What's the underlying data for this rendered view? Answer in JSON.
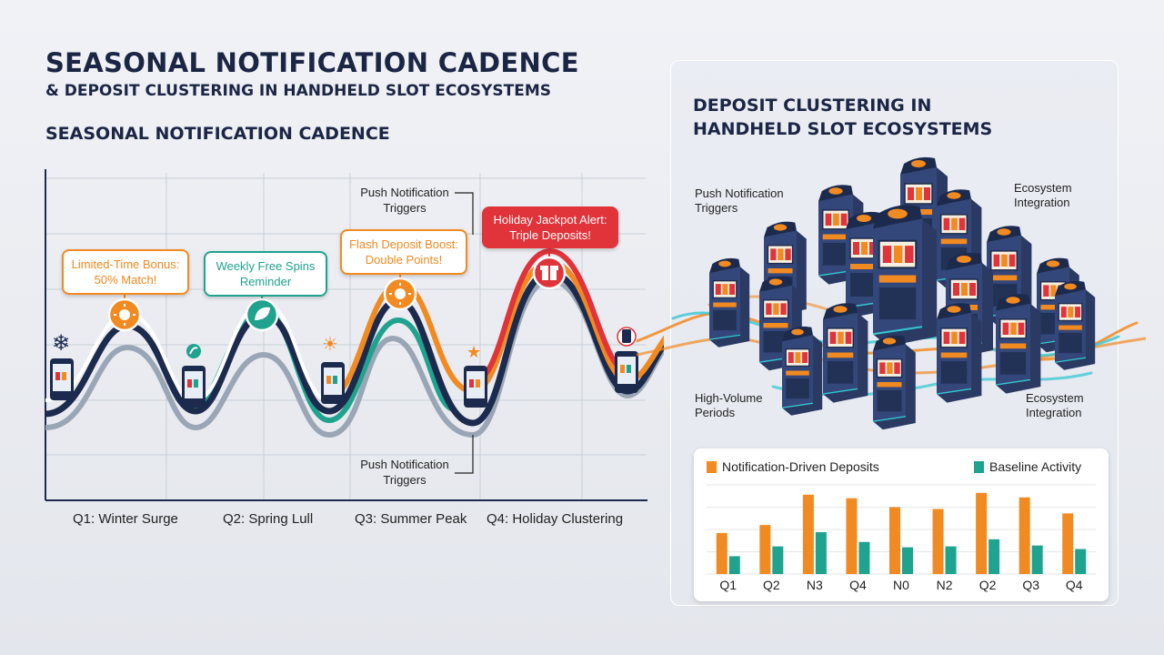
{
  "header": {
    "main_title": "SEASONAL NOTIFICATION CADENCE",
    "subtitle": "& DEPOSIT CLUSTERING IN HANDHELD SLOT ECOSYSTEMS",
    "section_title": "SEASONAL NOTIFICATION CADENCE"
  },
  "timeline": {
    "quarters": [
      "Q1: Winter Surge",
      "Q2: Spring Lull",
      "Q3: Summer Peak",
      "Q4: Holiday Clustering"
    ],
    "bubbles": [
      {
        "text": "Limited-Time Bonus: 50% Match!",
        "color": "#f28a22",
        "style": "outline"
      },
      {
        "text": "Weekly Free Spins Reminder",
        "color": "#1fa38e",
        "style": "outline"
      },
      {
        "text": "Flash Deposit Boost: Double Points!",
        "color": "#f28a22",
        "style": "outline"
      },
      {
        "text": "Holiday Jackpot Alert: Triple Deposits!",
        "color": "#e0333a",
        "style": "filled"
      }
    ],
    "callout_top": "Push Notification Triggers",
    "callout_bottom": "Push Notification Triggers",
    "icons": [
      "snowflake-icon",
      "sun-icon",
      "leaf-icon",
      "sun-icon",
      "star-icon",
      "gift-icon",
      "phone-icon"
    ],
    "colors": {
      "navy": "#1c2a4d",
      "orange": "#f28a22",
      "teal": "#1fa38e",
      "red": "#e0333a",
      "gray": "#9aa6b5"
    }
  },
  "panel": {
    "title": "DEPOSIT CLUSTERING IN HANDHELD SLOT ECOSYSTEMS",
    "callouts": {
      "push": "Push Notification Triggers",
      "ecosystem_top": "Ecosystem Integration",
      "high_volume": "High-Volume Periods",
      "ecosystem_bottom": "Ecosystem Integration"
    }
  },
  "chart_data": {
    "type": "bar",
    "categories": [
      "Q1",
      "Q2",
      "N3",
      "Q4",
      "N0",
      "N2",
      "Q2",
      "Q3",
      "Q4"
    ],
    "series": [
      {
        "name": "Notification-Driven Deposits",
        "color": "#f28a22",
        "values": [
          46,
          55,
          89,
          85,
          75,
          73,
          91,
          86,
          68
        ]
      },
      {
        "name": "Baseline Activity",
        "color": "#1fa38e",
        "values": [
          20,
          31,
          47,
          36,
          30,
          31,
          39,
          32,
          28
        ]
      }
    ],
    "ylim": [
      0,
      100
    ],
    "grid": true,
    "legend_position": "top"
  }
}
